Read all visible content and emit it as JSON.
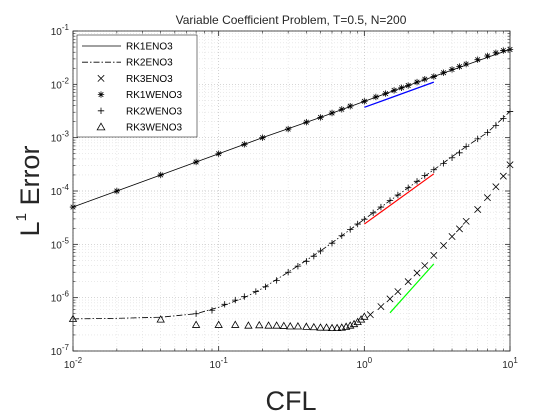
{
  "chart_data": {
    "type": "line",
    "title": "Variable Coefficient Problem, T=0.5, N=200",
    "xlabel": "CFL",
    "ylabel": {
      "main": "L",
      "sup": "1",
      "rest": " Error"
    },
    "xscale": "log",
    "yscale": "log",
    "xlim": [
      0.01,
      10
    ],
    "ylim": [
      1e-07,
      0.1
    ],
    "grid": "major and minor, dotted",
    "legend_position": "top-left",
    "x_ticks": [
      {
        "value": 0.01,
        "base": "10",
        "exp": "-2"
      },
      {
        "value": 0.1,
        "base": "10",
        "exp": "-1"
      },
      {
        "value": 1,
        "base": "10",
        "exp": "0"
      },
      {
        "value": 10,
        "base": "10",
        "exp": "1"
      }
    ],
    "y_ticks": [
      {
        "value": 1e-07,
        "base": "10",
        "exp": "-7"
      },
      {
        "value": 1e-06,
        "base": "10",
        "exp": "-6"
      },
      {
        "value": 1e-05,
        "base": "10",
        "exp": "-5"
      },
      {
        "value": 0.0001,
        "base": "10",
        "exp": "-4"
      },
      {
        "value": 0.001,
        "base": "10",
        "exp": "-3"
      },
      {
        "value": 0.01,
        "base": "10",
        "exp": "-2"
      },
      {
        "value": 0.1,
        "base": "10",
        "exp": "-1"
      }
    ],
    "series": [
      {
        "name": "RK1ENO3",
        "line": "solid",
        "marker": "none",
        "x": [
          0.01,
          0.02,
          0.04,
          0.1,
          0.2,
          0.5,
          1,
          2,
          3,
          5,
          7,
          10
        ],
        "y": [
          5e-05,
          0.0001,
          0.0002,
          0.0005,
          0.001,
          0.0024,
          0.0048,
          0.0095,
          0.014,
          0.023,
          0.032,
          0.045
        ]
      },
      {
        "name": "RK2ENO3",
        "line": "dashdot",
        "marker": "none",
        "x": [
          0.01,
          0.02,
          0.04,
          0.07,
          0.1,
          0.15,
          0.2,
          0.3,
          0.5,
          0.7,
          1,
          1.5,
          2,
          3,
          5,
          7,
          10
        ],
        "y": [
          4e-07,
          4.1e-07,
          4.3e-07,
          5e-07,
          6.6e-07,
          1e-06,
          1.5e-06,
          3e-06,
          7.5e-06,
          1.45e-05,
          2.95e-05,
          6.6e-05,
          0.000115,
          0.00025,
          0.00068,
          0.00125,
          0.0031
        ]
      },
      {
        "name": "RK3ENO3",
        "line": "none",
        "marker": "x",
        "x": [
          1.1,
          1.3,
          1.5,
          1.7,
          2.0,
          2.3,
          2.6,
          3.0,
          3.5,
          4.0,
          4.5,
          5.0,
          6.0,
          7.0,
          8.0,
          9.0,
          10
        ],
        "y": [
          4.8e-07,
          6.8e-07,
          9.5e-07,
          1.3e-06,
          2e-06,
          2.9e-06,
          4e-06,
          6.2e-06,
          9.5e-06,
          1.4e-05,
          1.95e-05,
          2.7e-05,
          4.5e-05,
          7.5e-05,
          0.00012,
          0.00019,
          0.00031
        ]
      },
      {
        "name": "RK1WENO3",
        "line": "none",
        "marker": "asterisk",
        "x": [
          0.01,
          0.02,
          0.04,
          0.07,
          0.1,
          0.15,
          0.2,
          0.3,
          0.4,
          0.5,
          0.6,
          0.7,
          0.8,
          1.0,
          1.2,
          1.4,
          1.6,
          1.8,
          2.0,
          2.3,
          2.6,
          3.0,
          3.5,
          4.0,
          4.5,
          5.0,
          6.0,
          7.0,
          8.0,
          9.0,
          10
        ],
        "y": [
          5e-05,
          0.0001,
          0.0002,
          0.00035,
          0.0005,
          0.00075,
          0.001,
          0.00145,
          0.00195,
          0.0024,
          0.0029,
          0.0034,
          0.0039,
          0.0048,
          0.0058,
          0.0067,
          0.0077,
          0.0086,
          0.0095,
          0.011,
          0.0125,
          0.014,
          0.0165,
          0.019,
          0.0215,
          0.024,
          0.029,
          0.034,
          0.039,
          0.043,
          0.045
        ]
      },
      {
        "name": "RK2WENO3",
        "line": "none",
        "marker": "plus",
        "x": [
          0.07,
          0.09,
          0.11,
          0.13,
          0.15,
          0.18,
          0.21,
          0.25,
          0.3,
          0.35,
          0.4,
          0.45,
          0.5,
          0.6,
          0.7,
          0.8,
          0.9,
          1.0,
          1.15,
          1.3,
          1.5,
          1.7,
          2.0,
          2.3,
          2.6,
          3.0,
          3.5,
          4.0,
          4.5,
          5.0,
          6.0,
          7.0,
          8.0,
          9.0,
          10
        ],
        "y": [
          5e-07,
          5.8e-07,
          7.5e-07,
          9e-07,
          1.05e-06,
          1.3e-06,
          1.6e-06,
          2.1e-06,
          3e-06,
          3.9e-06,
          4.8e-06,
          6e-06,
          7.5e-06,
          1.05e-05,
          1.45e-05,
          1.9e-05,
          2.4e-05,
          2.95e-05,
          3.9e-05,
          5e-05,
          6.6e-05,
          8.4e-05,
          0.000115,
          0.000152,
          0.000195,
          0.00025,
          0.00033,
          0.00042,
          0.00052,
          0.00068,
          0.00095,
          0.00125,
          0.0017,
          0.0023,
          0.0031
        ]
      },
      {
        "name": "RK3WENO3",
        "line": "none",
        "marker": "triangle",
        "x": [
          0.01,
          0.04,
          0.07,
          0.1,
          0.13,
          0.16,
          0.19,
          0.22,
          0.25,
          0.28,
          0.31,
          0.35,
          0.4,
          0.45,
          0.5,
          0.55,
          0.6,
          0.65,
          0.7,
          0.75,
          0.8,
          0.85,
          0.9,
          0.95,
          1.0
        ],
        "y": [
          4e-07,
          3.9e-07,
          3.1e-07,
          3.1e-07,
          3.1e-07,
          3e-07,
          3.05e-07,
          3e-07,
          3e-07,
          2.95e-07,
          2.9e-07,
          2.9e-07,
          2.85e-07,
          2.8e-07,
          2.75e-07,
          2.75e-07,
          2.7e-07,
          2.7e-07,
          2.75e-07,
          2.85e-07,
          3e-07,
          3.2e-07,
          3.5e-07,
          3.9e-07,
          4.4e-07
        ]
      }
    ],
    "reference_lines": [
      {
        "color": "#0000ff",
        "x": [
          1,
          3
        ],
        "y": [
          0.0037,
          0.011
        ]
      },
      {
        "color": "#ff0000",
        "x": [
          1,
          3
        ],
        "y": [
          2.4e-05,
          0.00021
        ]
      },
      {
        "color": "#00ff00",
        "x": [
          1.5,
          3
        ],
        "y": [
          5.2e-07,
          4.3e-06
        ]
      }
    ]
  }
}
